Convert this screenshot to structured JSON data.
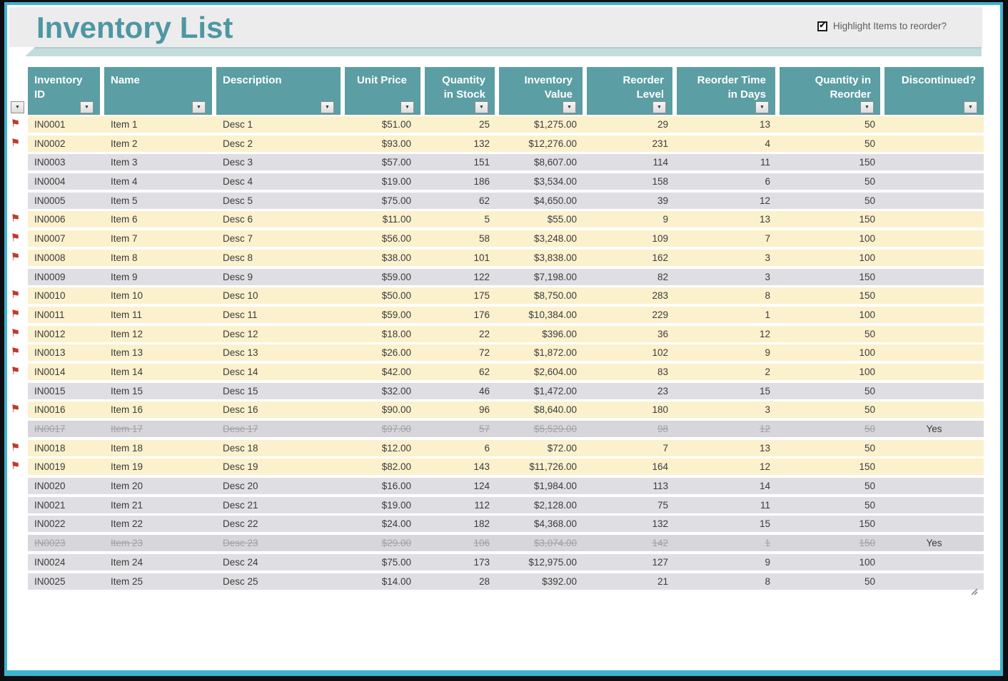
{
  "page": {
    "title": "Inventory List",
    "checkbox_label": "Highlight Items to reorder?",
    "checkbox_checked": true
  },
  "colors": {
    "accent_teal": "#5B9EA3",
    "title_teal": "#4E97A3",
    "border_cyan": "#3FB3CC",
    "band_teal": "#C5DCDF",
    "highlight_row": "#FCF1CD",
    "normal_row": "#DFDFE3",
    "discontinued_row": "#D7D7DB",
    "flag_red": "#C0392B"
  },
  "icons": {
    "filter_arrow": "▼",
    "reorder_flag": "⚑",
    "checkbox_check": "✔"
  },
  "table": {
    "columns": [
      {
        "key": "inventory-id",
        "label": "Inventory ID",
        "lines": [
          "Inventory",
          "ID"
        ]
      },
      {
        "key": "name",
        "label": "Name",
        "lines": [
          "Name"
        ]
      },
      {
        "key": "description",
        "label": "Description",
        "lines": [
          "Description"
        ]
      },
      {
        "key": "unit-price",
        "label": "Unit Price",
        "lines": [
          "Unit Price"
        ]
      },
      {
        "key": "quantity-in-stock",
        "label": "Quantity in Stock",
        "lines": [
          "Quantity",
          "in Stock"
        ]
      },
      {
        "key": "inventory-value",
        "label": "Inventory Value",
        "lines": [
          "Inventory",
          "Value"
        ]
      },
      {
        "key": "reorder-level",
        "label": "Reorder Level",
        "lines": [
          "Reorder",
          "Level"
        ]
      },
      {
        "key": "reorder-time-days",
        "label": "Reorder Time in Days",
        "lines": [
          "Reorder Time",
          "in Days"
        ]
      },
      {
        "key": "quantity-in-reorder",
        "label": "Quantity in Reorder",
        "lines": [
          "Quantity in",
          "Reorder"
        ]
      },
      {
        "key": "discontinued",
        "label": "Discontinued?",
        "lines": [
          "Discontinued?"
        ]
      }
    ],
    "rows": [
      {
        "id": "IN0001",
        "name": "Item 1",
        "desc": "Desc 1",
        "unit_price": "$51.00",
        "qty_in_stock": "25",
        "inventory_value": "$1,275.00",
        "reorder_level": "29",
        "reorder_time_days": "13",
        "qty_in_reorder": "50",
        "discontinued": "",
        "flag": true,
        "highlight": true
      },
      {
        "id": "IN0002",
        "name": "Item 2",
        "desc": "Desc 2",
        "unit_price": "$93.00",
        "qty_in_stock": "132",
        "inventory_value": "$12,276.00",
        "reorder_level": "231",
        "reorder_time_days": "4",
        "qty_in_reorder": "50",
        "discontinued": "",
        "flag": true,
        "highlight": true
      },
      {
        "id": "IN0003",
        "name": "Item 3",
        "desc": "Desc 3",
        "unit_price": "$57.00",
        "qty_in_stock": "151",
        "inventory_value": "$8,607.00",
        "reorder_level": "114",
        "reorder_time_days": "11",
        "qty_in_reorder": "150",
        "discontinued": "",
        "flag": false,
        "highlight": false
      },
      {
        "id": "IN0004",
        "name": "Item 4",
        "desc": "Desc 4",
        "unit_price": "$19.00",
        "qty_in_stock": "186",
        "inventory_value": "$3,534.00",
        "reorder_level": "158",
        "reorder_time_days": "6",
        "qty_in_reorder": "50",
        "discontinued": "",
        "flag": false,
        "highlight": false
      },
      {
        "id": "IN0005",
        "name": "Item 5",
        "desc": "Desc 5",
        "unit_price": "$75.00",
        "qty_in_stock": "62",
        "inventory_value": "$4,650.00",
        "reorder_level": "39",
        "reorder_time_days": "12",
        "qty_in_reorder": "50",
        "discontinued": "",
        "flag": false,
        "highlight": false
      },
      {
        "id": "IN0006",
        "name": "Item 6",
        "desc": "Desc 6",
        "unit_price": "$11.00",
        "qty_in_stock": "5",
        "inventory_value": "$55.00",
        "reorder_level": "9",
        "reorder_time_days": "13",
        "qty_in_reorder": "150",
        "discontinued": "",
        "flag": true,
        "highlight": true
      },
      {
        "id": "IN0007",
        "name": "Item 7",
        "desc": "Desc 7",
        "unit_price": "$56.00",
        "qty_in_stock": "58",
        "inventory_value": "$3,248.00",
        "reorder_level": "109",
        "reorder_time_days": "7",
        "qty_in_reorder": "100",
        "discontinued": "",
        "flag": true,
        "highlight": true
      },
      {
        "id": "IN0008",
        "name": "Item 8",
        "desc": "Desc 8",
        "unit_price": "$38.00",
        "qty_in_stock": "101",
        "inventory_value": "$3,838.00",
        "reorder_level": "162",
        "reorder_time_days": "3",
        "qty_in_reorder": "100",
        "discontinued": "",
        "flag": true,
        "highlight": true
      },
      {
        "id": "IN0009",
        "name": "Item 9",
        "desc": "Desc 9",
        "unit_price": "$59.00",
        "qty_in_stock": "122",
        "inventory_value": "$7,198.00",
        "reorder_level": "82",
        "reorder_time_days": "3",
        "qty_in_reorder": "150",
        "discontinued": "",
        "flag": false,
        "highlight": false
      },
      {
        "id": "IN0010",
        "name": "Item 10",
        "desc": "Desc 10",
        "unit_price": "$50.00",
        "qty_in_stock": "175",
        "inventory_value": "$8,750.00",
        "reorder_level": "283",
        "reorder_time_days": "8",
        "qty_in_reorder": "150",
        "discontinued": "",
        "flag": true,
        "highlight": true
      },
      {
        "id": "IN0011",
        "name": "Item 11",
        "desc": "Desc 11",
        "unit_price": "$59.00",
        "qty_in_stock": "176",
        "inventory_value": "$10,384.00",
        "reorder_level": "229",
        "reorder_time_days": "1",
        "qty_in_reorder": "100",
        "discontinued": "",
        "flag": true,
        "highlight": true
      },
      {
        "id": "IN0012",
        "name": "Item 12",
        "desc": "Desc 12",
        "unit_price": "$18.00",
        "qty_in_stock": "22",
        "inventory_value": "$396.00",
        "reorder_level": "36",
        "reorder_time_days": "12",
        "qty_in_reorder": "50",
        "discontinued": "",
        "flag": true,
        "highlight": true
      },
      {
        "id": "IN0013",
        "name": "Item 13",
        "desc": "Desc 13",
        "unit_price": "$26.00",
        "qty_in_stock": "72",
        "inventory_value": "$1,872.00",
        "reorder_level": "102",
        "reorder_time_days": "9",
        "qty_in_reorder": "100",
        "discontinued": "",
        "flag": true,
        "highlight": true
      },
      {
        "id": "IN0014",
        "name": "Item 14",
        "desc": "Desc 14",
        "unit_price": "$42.00",
        "qty_in_stock": "62",
        "inventory_value": "$2,604.00",
        "reorder_level": "83",
        "reorder_time_days": "2",
        "qty_in_reorder": "100",
        "discontinued": "",
        "flag": true,
        "highlight": true
      },
      {
        "id": "IN0015",
        "name": "Item 15",
        "desc": "Desc 15",
        "unit_price": "$32.00",
        "qty_in_stock": "46",
        "inventory_value": "$1,472.00",
        "reorder_level": "23",
        "reorder_time_days": "15",
        "qty_in_reorder": "50",
        "discontinued": "",
        "flag": false,
        "highlight": false
      },
      {
        "id": "IN0016",
        "name": "Item 16",
        "desc": "Desc 16",
        "unit_price": "$90.00",
        "qty_in_stock": "96",
        "inventory_value": "$8,640.00",
        "reorder_level": "180",
        "reorder_time_days": "3",
        "qty_in_reorder": "50",
        "discontinued": "",
        "flag": true,
        "highlight": true
      },
      {
        "id": "IN0017",
        "name": "Item 17",
        "desc": "Desc 17",
        "unit_price": "$97.00",
        "qty_in_stock": "57",
        "inventory_value": "$5,529.00",
        "reorder_level": "98",
        "reorder_time_days": "12",
        "qty_in_reorder": "50",
        "discontinued": "Yes",
        "flag": false,
        "highlight": false
      },
      {
        "id": "IN0018",
        "name": "Item 18",
        "desc": "Desc 18",
        "unit_price": "$12.00",
        "qty_in_stock": "6",
        "inventory_value": "$72.00",
        "reorder_level": "7",
        "reorder_time_days": "13",
        "qty_in_reorder": "50",
        "discontinued": "",
        "flag": true,
        "highlight": true
      },
      {
        "id": "IN0019",
        "name": "Item 19",
        "desc": "Desc 19",
        "unit_price": "$82.00",
        "qty_in_stock": "143",
        "inventory_value": "$11,726.00",
        "reorder_level": "164",
        "reorder_time_days": "12",
        "qty_in_reorder": "150",
        "discontinued": "",
        "flag": true,
        "highlight": true
      },
      {
        "id": "IN0020",
        "name": "Item 20",
        "desc": "Desc 20",
        "unit_price": "$16.00",
        "qty_in_stock": "124",
        "inventory_value": "$1,984.00",
        "reorder_level": "113",
        "reorder_time_days": "14",
        "qty_in_reorder": "50",
        "discontinued": "",
        "flag": false,
        "highlight": false
      },
      {
        "id": "IN0021",
        "name": "Item 21",
        "desc": "Desc 21",
        "unit_price": "$19.00",
        "qty_in_stock": "112",
        "inventory_value": "$2,128.00",
        "reorder_level": "75",
        "reorder_time_days": "11",
        "qty_in_reorder": "50",
        "discontinued": "",
        "flag": false,
        "highlight": false
      },
      {
        "id": "IN0022",
        "name": "Item 22",
        "desc": "Desc 22",
        "unit_price": "$24.00",
        "qty_in_stock": "182",
        "inventory_value": "$4,368.00",
        "reorder_level": "132",
        "reorder_time_days": "15",
        "qty_in_reorder": "150",
        "discontinued": "",
        "flag": false,
        "highlight": false
      },
      {
        "id": "IN0023",
        "name": "Item 23",
        "desc": "Desc 23",
        "unit_price": "$29.00",
        "qty_in_stock": "106",
        "inventory_value": "$3,074.00",
        "reorder_level": "142",
        "reorder_time_days": "1",
        "qty_in_reorder": "150",
        "discontinued": "Yes",
        "flag": false,
        "highlight": false
      },
      {
        "id": "IN0024",
        "name": "Item 24",
        "desc": "Desc 24",
        "unit_price": "$75.00",
        "qty_in_stock": "173",
        "inventory_value": "$12,975.00",
        "reorder_level": "127",
        "reorder_time_days": "9",
        "qty_in_reorder": "100",
        "discontinued": "",
        "flag": false,
        "highlight": false
      },
      {
        "id": "IN0025",
        "name": "Item 25",
        "desc": "Desc 25",
        "unit_price": "$14.00",
        "qty_in_stock": "28",
        "inventory_value": "$392.00",
        "reorder_level": "21",
        "reorder_time_days": "8",
        "qty_in_reorder": "50",
        "discontinued": "",
        "flag": false,
        "highlight": false
      }
    ]
  }
}
